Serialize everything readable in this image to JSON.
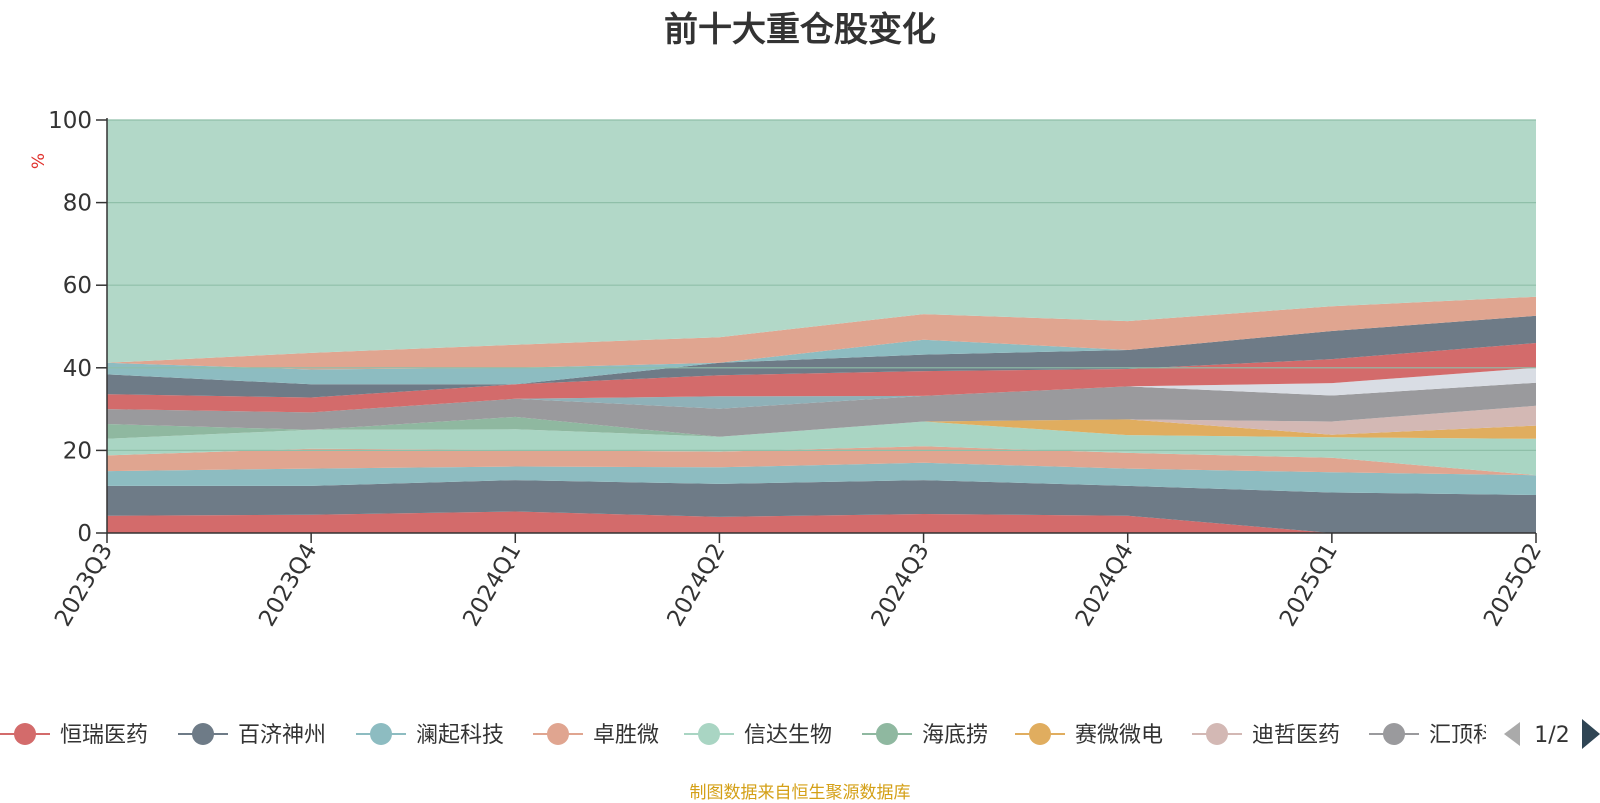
{
  "footer_note": "制图数据来自恒生聚源数据库",
  "colors": {
    "title": "#333333",
    "axis": "#333333",
    "grid": "#8fbfa9",
    "unit": "#e0302c",
    "footer": "#d4a017",
    "pager_active": "#2f4554",
    "pager_inactive": "#aaaaaa"
  },
  "legend": {
    "page_text": "1/2",
    "prev_icon": "triangle-left-icon",
    "next_icon": "triangle-right-icon"
  },
  "chart_data": {
    "type": "area",
    "stacked": true,
    "title": "前十大重仓股变化",
    "ylabel": "%",
    "ylim": [
      0,
      100
    ],
    "yticks": [
      0,
      20,
      40,
      60,
      80,
      100
    ],
    "grid": true,
    "legend_position": "bottom",
    "categories": [
      "2023Q3",
      "2023Q4",
      "2024Q1",
      "2024Q2",
      "2024Q3",
      "2024Q4",
      "2025Q1",
      "2025Q2"
    ],
    "series": [
      {
        "name": "恒瑞医药",
        "color": "#d36b6b",
        "values": [
          4.2,
          4.4,
          5.2,
          3.9,
          4.6,
          4.2,
          0.0,
          0.0
        ]
      },
      {
        "name": "百济神州",
        "color": "#6e7b87",
        "values": [
          7.2,
          7.0,
          7.6,
          8.0,
          8.2,
          7.2,
          9.8,
          9.2
        ]
      },
      {
        "name": "澜起科技",
        "color": "#8dbcc1",
        "values": [
          3.6,
          4.2,
          3.3,
          4.0,
          4.2,
          4.2,
          4.9,
          4.8
        ]
      },
      {
        "name": "卓胜微",
        "color": "#e0a590",
        "values": [
          3.8,
          4.8,
          4.0,
          3.8,
          4.0,
          3.8,
          3.5,
          0.0
        ]
      },
      {
        "name": "信达生物",
        "color": "#a9d5c3",
        "values": [
          4.0,
          4.6,
          5.0,
          3.6,
          6.0,
          4.3,
          5.0,
          8.8
        ]
      },
      {
        "name": "海底捞",
        "color": "#8fb8a0",
        "values": [
          3.6,
          0.0,
          3.0,
          0.0,
          0.0,
          0.0,
          0.0,
          0.0
        ]
      },
      {
        "name": "赛微微电",
        "color": "#e0ad5f",
        "values": [
          0.0,
          0.0,
          0.0,
          0.0,
          0.0,
          3.8,
          0.6,
          3.2
        ]
      },
      {
        "name": "迪哲医药",
        "color": "#d3b8b4",
        "values": [
          0.0,
          0.0,
          0.0,
          0.0,
          0.0,
          0.0,
          3.2,
          4.8
        ]
      },
      {
        "name": "汇顶科技",
        "color": "#9a9a9d",
        "values": [
          3.6,
          4.2,
          4.4,
          6.8,
          6.2,
          8.0,
          6.3,
          5.6
        ]
      },
      {
        "name": "",
        "color": "#8fb1b8",
        "values": [
          0.0,
          0.0,
          0.0,
          3.0,
          0.0,
          0.0,
          0.0,
          0.0
        ]
      },
      {
        "name": "",
        "color": "#d9dde4",
        "values": [
          0.0,
          0.0,
          0.0,
          0.0,
          0.0,
          0.0,
          3.0,
          3.6
        ]
      },
      {
        "name": "",
        "color": "#d36b6b",
        "values": [
          3.6,
          3.6,
          3.5,
          5.1,
          6.0,
          4.2,
          5.8,
          6.0
        ]
      },
      {
        "name": "",
        "color": "#6e7b87",
        "values": [
          4.8,
          3.2,
          0.0,
          3.0,
          4.0,
          4.6,
          6.8,
          6.6
        ]
      },
      {
        "name": "",
        "color": "#8dbcc1",
        "values": [
          2.8,
          3.6,
          4.0,
          0.0,
          3.6,
          0.0,
          0.0,
          0.0
        ]
      },
      {
        "name": "",
        "color": "#e0a590",
        "values": [
          0.0,
          4.0,
          5.6,
          6.2,
          6.2,
          7.0,
          6.0,
          4.6
        ]
      },
      {
        "name": "",
        "color": "#b2d8c8",
        "values": [
          58.8,
          56.4,
          54.4,
          52.6,
          47.0,
          48.7,
          45.1,
          42.8
        ]
      }
    ]
  }
}
